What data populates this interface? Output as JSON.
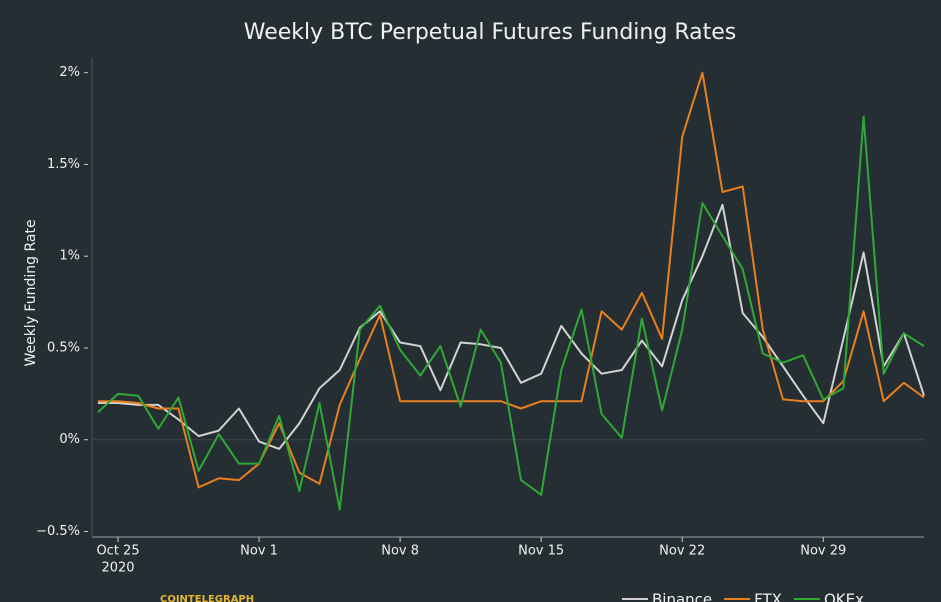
{
  "chart_data": {
    "type": "line",
    "title": "Weekly BTC Perpetual Futures Funding Rates",
    "y_label": "Weekly Funding Rate",
    "x_year_label": "2020",
    "watermark": "COINTELEGRAPH",
    "x": [
      "2020-10-24",
      "2020-10-25",
      "2020-10-26",
      "2020-10-27",
      "2020-10-28",
      "2020-10-29",
      "2020-10-30",
      "2020-10-31",
      "2020-11-01",
      "2020-11-02",
      "2020-11-03",
      "2020-11-04",
      "2020-11-05",
      "2020-11-06",
      "2020-11-07",
      "2020-11-08",
      "2020-11-09",
      "2020-11-10",
      "2020-11-11",
      "2020-11-12",
      "2020-11-13",
      "2020-11-14",
      "2020-11-15",
      "2020-11-16",
      "2020-11-17",
      "2020-11-18",
      "2020-11-19",
      "2020-11-20",
      "2020-11-21",
      "2020-11-22",
      "2020-11-23",
      "2020-11-24",
      "2020-11-25",
      "2020-11-26",
      "2020-11-27",
      "2020-11-28",
      "2020-11-29",
      "2020-11-30",
      "2020-12-01",
      "2020-12-02",
      "2020-12-03",
      "2020-12-04"
    ],
    "series": [
      {
        "name": "Binance",
        "color": "#d2d2d2",
        "values": [
          0.2,
          0.2,
          0.19,
          0.19,
          0.11,
          0.02,
          0.05,
          0.17,
          -0.01,
          -0.05,
          0.09,
          0.28,
          0.38,
          0.61,
          0.7,
          0.53,
          0.51,
          0.27,
          0.53,
          0.52,
          0.5,
          0.31,
          0.36,
          0.62,
          0.47,
          0.36,
          0.38,
          0.54,
          0.4,
          0.76,
          1.0,
          1.28,
          0.69,
          0.56,
          0.4,
          0.24,
          0.09,
          0.55,
          1.02,
          0.4,
          0.58,
          0.24
        ]
      },
      {
        "name": "FTX",
        "color": "#e8801e",
        "values": [
          0.21,
          0.21,
          0.2,
          0.17,
          0.17,
          -0.26,
          -0.21,
          -0.22,
          -0.13,
          0.09,
          -0.18,
          -0.24,
          0.19,
          0.44,
          0.68,
          0.21,
          0.21,
          0.21,
          0.21,
          0.21,
          0.21,
          0.17,
          0.21,
          0.21,
          0.21,
          0.7,
          0.6,
          0.8,
          0.55,
          1.65,
          2.0,
          1.35,
          1.38,
          0.6,
          0.22,
          0.21,
          0.21,
          0.32,
          0.7,
          0.21,
          0.31,
          0.23
        ]
      },
      {
        "name": "OKEx",
        "color": "#2fa836",
        "values": [
          0.15,
          0.25,
          0.24,
          0.06,
          0.23,
          -0.17,
          0.03,
          -0.13,
          -0.13,
          0.13,
          -0.28,
          0.2,
          -0.38,
          0.6,
          0.73,
          0.49,
          0.35,
          0.51,
          0.18,
          0.6,
          0.42,
          -0.22,
          -0.3,
          0.38,
          0.71,
          0.14,
          0.01,
          0.66,
          0.16,
          0.6,
          1.29,
          1.11,
          0.93,
          0.47,
          0.42,
          0.46,
          0.22,
          0.28,
          1.76,
          0.36,
          0.58,
          0.51
        ]
      }
    ],
    "xlim": [
      "2020-10-23T17:00:00Z",
      "2020-12-04T00:00:00Z"
    ],
    "xticks": [
      {
        "value": "2020-10-25",
        "label": "Oct 25"
      },
      {
        "value": "2020-11-01",
        "label": "Nov 1"
      },
      {
        "value": "2020-11-08",
        "label": "Nov 8"
      },
      {
        "value": "2020-11-15",
        "label": "Nov 15"
      },
      {
        "value": "2020-11-22",
        "label": "Nov 22"
      },
      {
        "value": "2020-11-29",
        "label": "Nov 29"
      }
    ],
    "ylim": [
      -0.53,
      2.08
    ],
    "yticks": [
      {
        "value": -0.5,
        "label": "−0.5%"
      },
      {
        "value": 0,
        "label": "0%"
      },
      {
        "value": 0.5,
        "label": "0.5%"
      },
      {
        "value": 1,
        "label": "1%"
      },
      {
        "value": 1.5,
        "label": "1.5%"
      },
      {
        "value": 2,
        "label": "2%"
      }
    ],
    "zeroline": true,
    "legend": "bottom-right"
  }
}
